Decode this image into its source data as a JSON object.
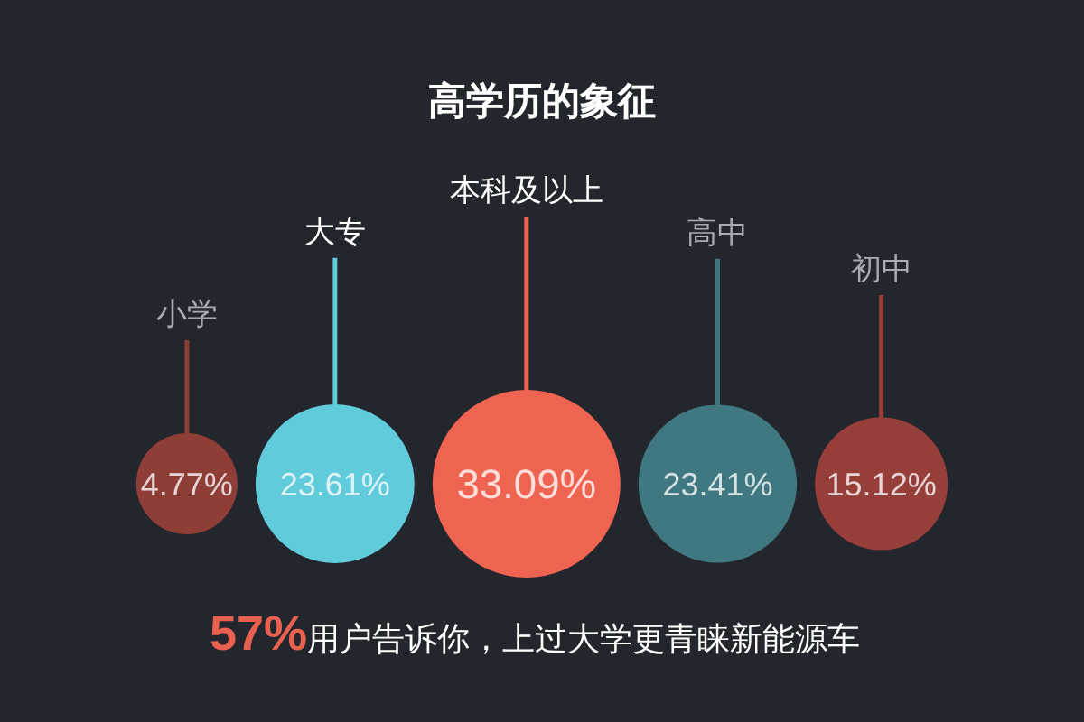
{
  "chart_data": {
    "type": "other",
    "title": "高学历的象征",
    "categories": [
      "小学",
      "大专",
      "本科及以上",
      "高中",
      "初中"
    ],
    "values": [
      4.77,
      23.61,
      33.09,
      23.41,
      15.12
    ],
    "value_labels": [
      "4.77%",
      "23.61%",
      "33.09%",
      "23.41%",
      "15.12%"
    ],
    "colors": [
      "#8f3d37",
      "#5fcbdb",
      "#ef6351",
      "#3f7880",
      "#963f3a"
    ],
    "annotations": [
      "57%",
      "用户告诉你，上过大学更青睐新能源车"
    ]
  }
}
